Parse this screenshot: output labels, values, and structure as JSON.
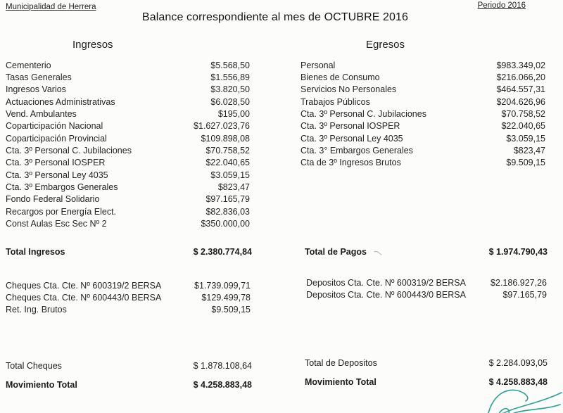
{
  "header": {
    "org": "Municipalidad de Herrera",
    "period": "Periodo 2016",
    "title": "Balance correspondiente al mes de OCTUBRE 2016"
  },
  "ingresos": {
    "heading": "Ingresos",
    "items": [
      {
        "label": "Cementerio",
        "value": "$5.568,50"
      },
      {
        "label": "Tasas Generales",
        "value": "$1.556,89"
      },
      {
        "label": "Ingresos Varios",
        "value": "$3.820,50"
      },
      {
        "label": "Actuaciones Administrativas",
        "value": "$6.028,50"
      },
      {
        "label": "Vend. Ambulantes",
        "value": "$195,00"
      },
      {
        "label": "Coparticipación Nacional",
        "value": "$1.627.023,76"
      },
      {
        "label": "Coparticipación Provincial",
        "value": "$109.898,08"
      },
      {
        "label": "Cta. 3º Personal C. Jubilaciones",
        "value": "$70.758,52"
      },
      {
        "label": "Cta. 3º Personal IOSPER",
        "value": "$22.040,65"
      },
      {
        "label": "Cta. 3º Personal Ley 4035",
        "value": "$3.059,15"
      },
      {
        "label": "Cta. 3º Embargos Generales",
        "value": "$823,47"
      },
      {
        "label": "Fondo Federal Solidario",
        "value": "$97.165,79"
      },
      {
        "label": "Recargos por Energía Elect.",
        "value": "$82.836,03"
      },
      {
        "label": "Const Aulas Esc Sec Nº 2",
        "value": "$350.000,00"
      }
    ],
    "total_label": "Total Ingresos",
    "total_value": "$ 2.380.774,84"
  },
  "egresos": {
    "heading": "Egresos",
    "items": [
      {
        "label": "Personal",
        "value": "$983.349,02"
      },
      {
        "label": "Bienes de Consumo",
        "value": "$216.066,20"
      },
      {
        "label": "Servicios No Personales",
        "value": "$464.557,31"
      },
      {
        "label": "Trabajos Públicos",
        "value": "$204.626,96"
      },
      {
        "label": "Cta. 3º Personal C. Jubilaciones",
        "value": "$70.758,52"
      },
      {
        "label": "Cta. 3º Personal IOSPER",
        "value": "$22.040,65"
      },
      {
        "label": "Cta. 3º Personal Ley 4035",
        "value": "$3.059,15"
      },
      {
        "label": "Cta. 3° Embargos Generales",
        "value": "$823,47"
      },
      {
        "label": "Cta de 3º Ingresos Brutos",
        "value": "$9.509,15"
      }
    ],
    "total_label": "Total de Pagos",
    "total_value": "$ 1.974.790,43"
  },
  "cheques": {
    "items": [
      {
        "label": "Cheques Cta. Cte. Nº 600319/2 BERSA",
        "value": "$1.739.099,71"
      },
      {
        "label": "Cheques Cta. Cte. Nº 600443/0 BERSA",
        "value": "$129.499,78"
      },
      {
        "label": "Ret. Ing. Brutos",
        "value": "$9.509,15"
      }
    ],
    "total_label": "Total Cheques",
    "total_value": "$ 1.878.108,64",
    "movement_label": "Movimiento Total",
    "movement_value": "$ 4.258.883,48"
  },
  "depositos": {
    "items": [
      {
        "label": "Depositos Cta. Cte. Nº 600319/2 BERSA",
        "value": "$2.186.927,26"
      },
      {
        "label": "Depositos Cta. Cte. Nº 600443/0 BERSA",
        "value": "$97.165,79"
      }
    ],
    "total_label": "Total de Depositos",
    "total_value": "$ 2.284.093,05",
    "movement_label": "Movimiento Total",
    "movement_value": "$ 4.258.883,48"
  },
  "signature": {
    "ink_color": "#2aa192"
  }
}
